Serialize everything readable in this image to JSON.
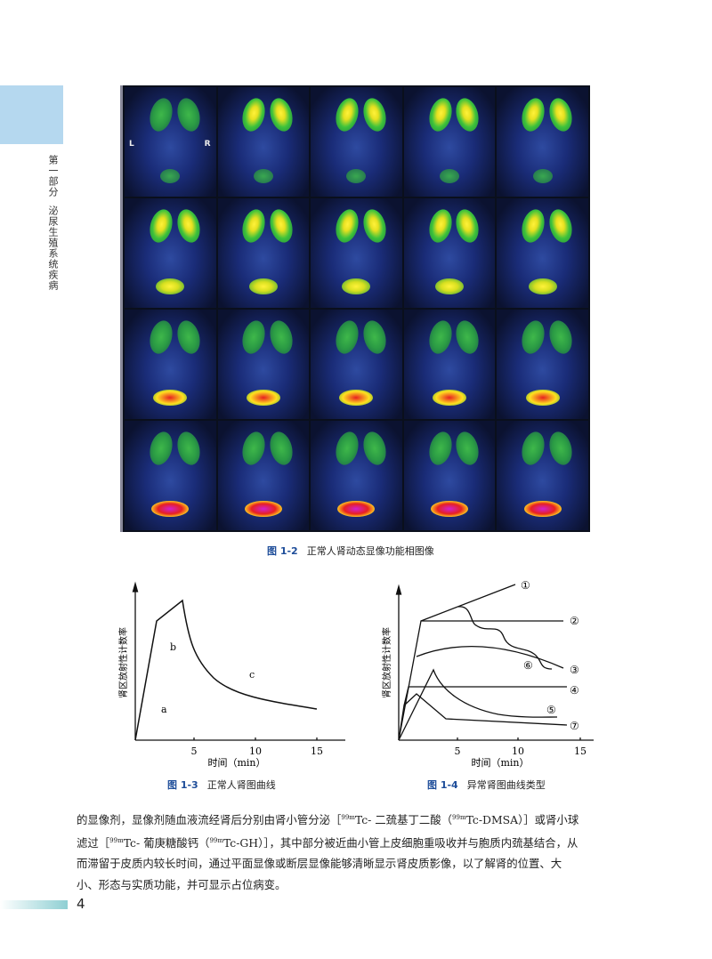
{
  "sidebar": {
    "part": "第一部分",
    "title": "泌尿生殖系统疾病"
  },
  "figure_1_2": {
    "number": "图 1-2",
    "caption": "正常人肾动态显像功能相图像",
    "marker_left": "L",
    "marker_right": "R",
    "grid": {
      "rows": 4,
      "cols": 5
    }
  },
  "figure_1_3": {
    "number": "图 1-3",
    "caption": "正常人肾图曲线",
    "ylabel": "肾区放射性计数率",
    "xlabel": "时间（min）",
    "xticks": [
      "5",
      "10",
      "15"
    ],
    "segments": [
      "a",
      "b",
      "c"
    ]
  },
  "figure_1_4": {
    "number": "图 1-4",
    "caption": "异常肾图曲线类型",
    "ylabel": "肾区放射性计数率",
    "xlabel": "时间（min）",
    "xticks": [
      "5",
      "10",
      "15"
    ],
    "curve_labels": [
      "①",
      "②",
      "③",
      "④",
      "⑤",
      "⑥",
      "⑦"
    ]
  },
  "body": {
    "l1a": "的显像剂，显像剂随血液流经肾后分别由肾小管分泌［",
    "sup": "99m",
    "l1b": "Tc- 二巯基丁二酸（",
    "l1c": "Tc-DMSA）］或肾小球",
    "l2a": "滤过［",
    "l2b": "Tc- 葡庚糖酸钙（",
    "l2c": "Tc-GH）］，其中部分被近曲小管上皮细胞重吸收并与胞质内巯基结合，从",
    "l3": "而滞留于皮质内较长时间，通过平面显像或断层显像能够清晰显示肾皮质影像，以了解肾的位置、大",
    "l4": "小、形态与实质功能，并可显示占位病变。"
  },
  "page_number": "4"
}
